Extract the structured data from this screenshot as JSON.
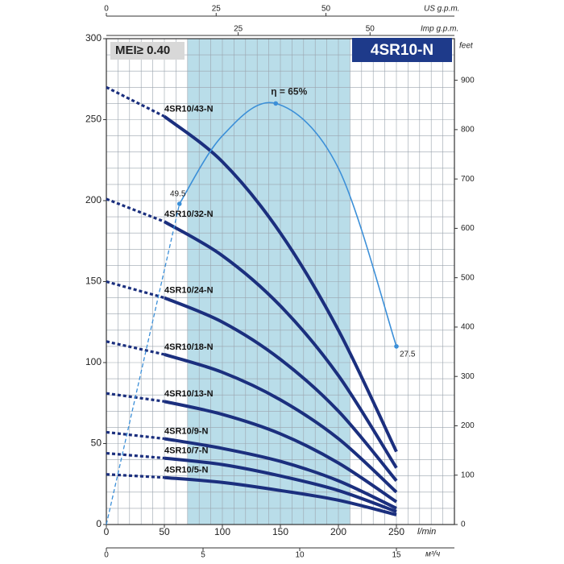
{
  "chart_data": {
    "type": "line",
    "title": "4SR10-N",
    "badge": "MEI≥ 0.40",
    "x_label": "l/min",
    "xlim": [
      0,
      300
    ],
    "xticks": [
      0,
      50,
      100,
      150,
      200,
      250
    ],
    "ylim": [
      0,
      300
    ],
    "yticks": [
      0,
      50,
      100,
      150,
      200,
      250,
      300
    ],
    "y2_label": "feet",
    "y2lim": [
      0,
      984.25
    ],
    "y2ticks": [
      0,
      100,
      200,
      300,
      400,
      500,
      600,
      700,
      800,
      900
    ],
    "top_axes": [
      {
        "label": "US g.p.m.",
        "lim": [
          0,
          79.25
        ],
        "ticks": [
          0,
          25,
          50
        ]
      },
      {
        "label": "Imp g.p.m.",
        "lim": [
          0,
          66
        ],
        "ticks": [
          25,
          50
        ]
      }
    ],
    "bottom_axis2": {
      "label": "м³/ч",
      "lim": [
        0,
        18
      ],
      "ticks": [
        0,
        5,
        10,
        15
      ]
    },
    "grid": true,
    "shaded_range": [
      70,
      210
    ],
    "x": [
      0,
      50,
      100,
      150,
      200,
      250
    ],
    "series": [
      {
        "name": "4SR10/43-N",
        "color": "#1b2f7e",
        "values": [
          270,
          252,
          224,
          180,
          120,
          45
        ]
      },
      {
        "name": "4SR10/32-N",
        "color": "#1b2f7e",
        "values": [
          201,
          187,
          166,
          135,
          92,
          35
        ]
      },
      {
        "name": "4SR10/24-N",
        "color": "#1b2f7e",
        "values": [
          150,
          140,
          125,
          102,
          70,
          27
        ]
      },
      {
        "name": "4SR10/18-N",
        "color": "#1b2f7e",
        "values": [
          113,
          105,
          94,
          77,
          53,
          20
        ]
      },
      {
        "name": "4SR10/13-N",
        "color": "#1b2f7e",
        "values": [
          81,
          76,
          68,
          56,
          38,
          14
        ]
      },
      {
        "name": "4SR10/9-N",
        "color": "#1b2f7e",
        "values": [
          57,
          53,
          47,
          39,
          27,
          10
        ]
      },
      {
        "name": "4SR10/7-N",
        "color": "#1b2f7e",
        "values": [
          44,
          41,
          37,
          30,
          21,
          8
        ]
      },
      {
        "name": "4SR10/5-N",
        "color": "#1b2f7e",
        "values": [
          31,
          29,
          26,
          21,
          15,
          6
        ]
      }
    ],
    "efficiency": {
      "color": "#3b8fd8",
      "x": [
        0,
        63,
        100,
        146,
        200,
        250
      ],
      "values": [
        0,
        49.5,
        60,
        65,
        55,
        27.5
      ],
      "peak_label": "η = 65%"
    }
  }
}
